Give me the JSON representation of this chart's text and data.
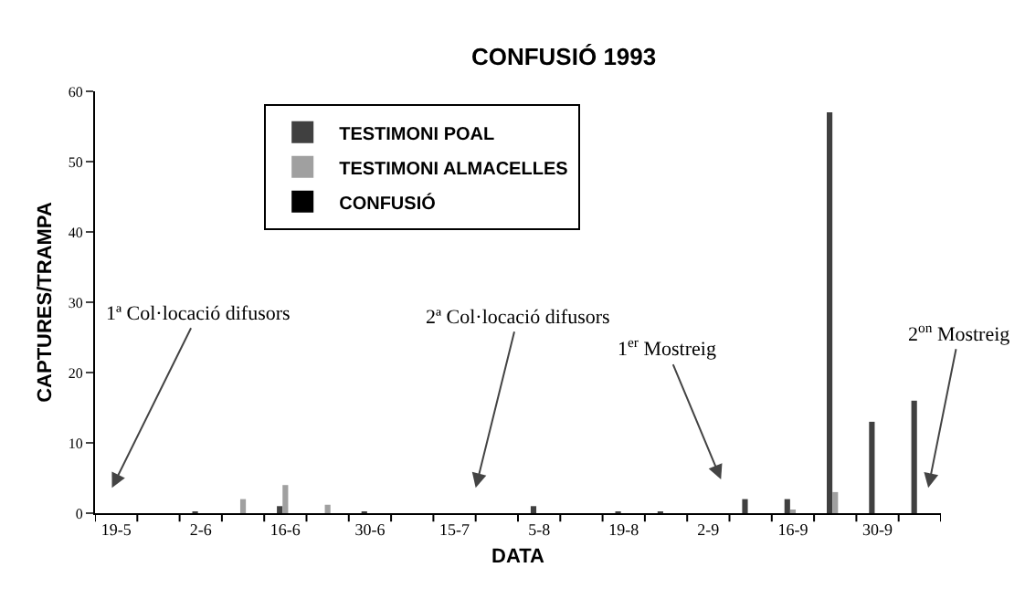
{
  "chart_data": {
    "type": "bar",
    "title": "CONFUSIÓ 1993",
    "xlabel": "DATA",
    "ylabel": "CAPTURES/TRAMPA",
    "categories": [
      "19-5",
      null,
      "2-6",
      null,
      "16-6",
      null,
      "30-6",
      null,
      "15-7",
      null,
      "5-8",
      null,
      "19-8",
      null,
      "2-9",
      null,
      "16-9",
      null,
      "30-9",
      null
    ],
    "series": [
      {
        "name": "TESTIMONI POAL",
        "color": "#404040",
        "values": [
          null,
          null,
          0.2,
          null,
          1,
          null,
          0.2,
          null,
          null,
          null,
          1,
          null,
          0.2,
          0.2,
          null,
          2,
          2,
          57,
          13,
          16
        ]
      },
      {
        "name": "TESTIMONI ALMACELLES",
        "color": "#a0a0a0",
        "values": [
          null,
          null,
          null,
          2,
          4,
          1.2,
          null,
          null,
          null,
          null,
          null,
          null,
          null,
          null,
          null,
          null,
          0.5,
          3,
          null,
          null
        ]
      },
      {
        "name": "CONFUSIÓ",
        "color": "#000000",
        "values": [
          null,
          null,
          null,
          null,
          null,
          null,
          null,
          null,
          null,
          null,
          null,
          null,
          null,
          null,
          null,
          null,
          null,
          null,
          null,
          null
        ]
      }
    ],
    "ylim": [
      0,
      60
    ],
    "yticks": [
      0,
      10,
      20,
      30,
      40,
      50,
      60
    ],
    "legend": "top",
    "annotations": [
      "1ª Col·locació difusors",
      "2ª Col·locació difusors",
      "1$^{er}$ Mostreig",
      "2$^{on}$ Mostreig"
    ]
  }
}
